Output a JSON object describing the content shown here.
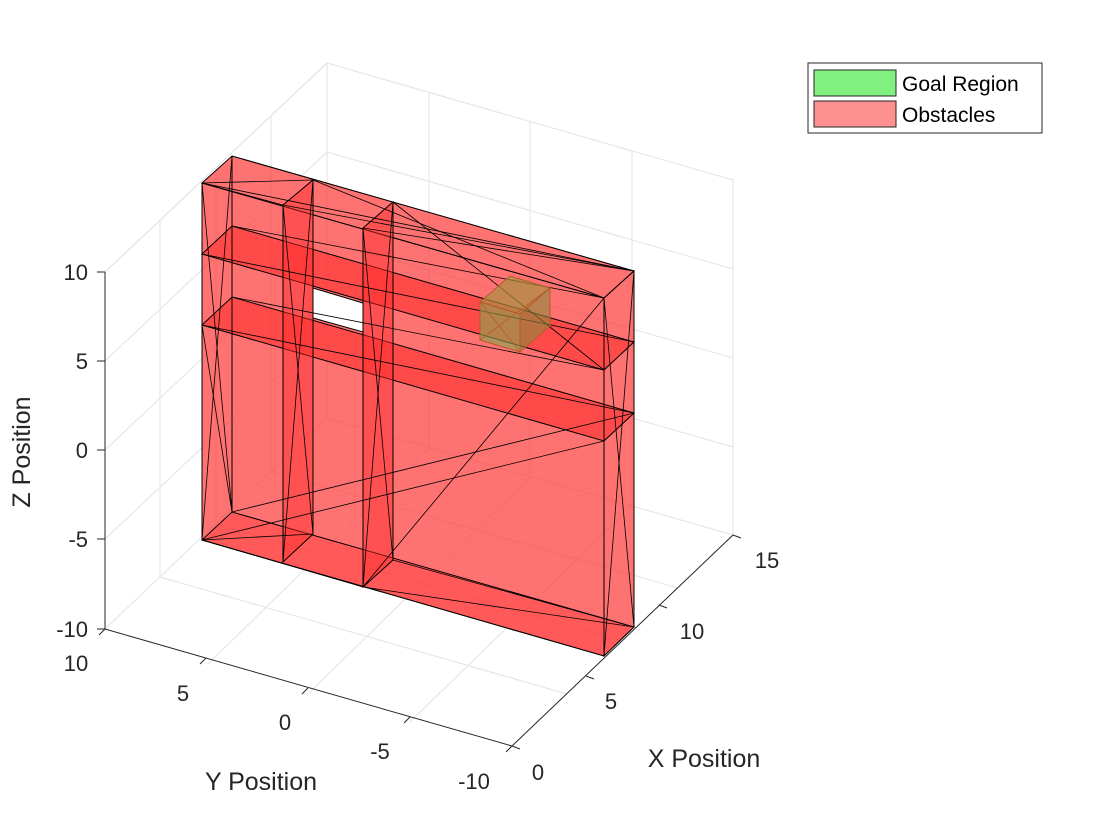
{
  "chart_data": {
    "type": "3d-surface",
    "xlabel": "X Position",
    "ylabel": "Y Position",
    "zlabel": "Z Position",
    "xlim": [
      0,
      15
    ],
    "ylim": [
      -10,
      10
    ],
    "zlim": [
      -10,
      10
    ],
    "x_ticks": [
      "0",
      "5",
      "10",
      "15"
    ],
    "y_ticks": [
      "10",
      "5",
      "0",
      "-5",
      "-10"
    ],
    "z_ticks": [
      "10",
      "5",
      "0",
      "-5",
      "-10"
    ],
    "grid": true,
    "legend_placement": "top-right",
    "legend": [
      {
        "label": "Goal Region",
        "color": "#80f080"
      },
      {
        "label": "Obstacles",
        "color": "#ff9090"
      }
    ],
    "obstacle_color": "#ff3b3b",
    "goal_color": "#84a84f",
    "obstacles": [
      {
        "name": "bottom-bar",
        "x": [
          1,
          4
        ],
        "y": [
          -8,
          8
        ],
        "z": [
          -5,
          -5
        ]
      },
      {
        "name": "middle-bar",
        "x": [
          1,
          4
        ],
        "y": [
          -8,
          8
        ],
        "z": [
          1,
          5
        ]
      },
      {
        "name": "top-bar",
        "x": [
          1,
          4
        ],
        "y": [
          -8,
          8
        ],
        "z": [
          10,
          14
        ]
      },
      {
        "name": "left-pillar",
        "x": [
          1,
          4
        ],
        "y": [
          3,
          8
        ],
        "z": [
          -5,
          14
        ]
      },
      {
        "name": "center-pillar",
        "x": [
          1,
          4
        ],
        "y": [
          -3,
          0
        ],
        "z": [
          -5,
          14
        ]
      },
      {
        "name": "right-pillar",
        "x": [
          1,
          4
        ],
        "y": [
          -8,
          -6
        ],
        "z": [
          -5,
          14
        ]
      }
    ],
    "goal": {
      "x": [
        2,
        5
      ],
      "y": [
        -6,
        -4
      ],
      "z": [
        8,
        10
      ]
    }
  }
}
